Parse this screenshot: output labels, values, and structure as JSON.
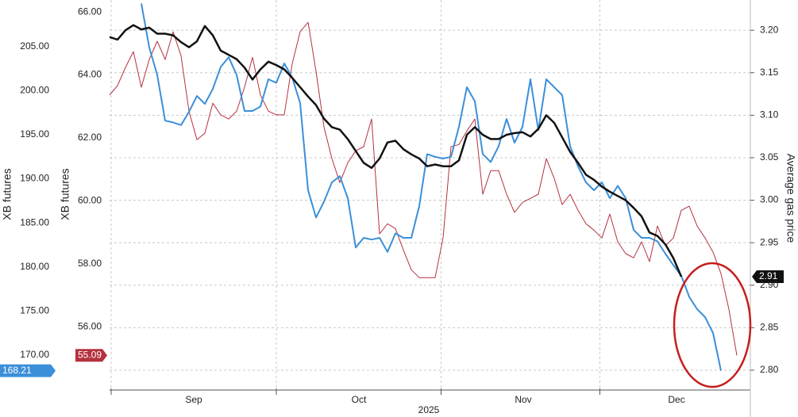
{
  "chart_data": {
    "type": "line",
    "xlabel": "2025",
    "ylabel": "XB futures",
    "y2label": "XB futures",
    "y3label": "Average gas price",
    "grid": true,
    "xlim": [
      0,
      80.7
    ],
    "xticks": [
      {
        "value": 10.6,
        "label": "Sep"
      },
      {
        "value": 31.4,
        "label": "Oct"
      },
      {
        "value": 52.1,
        "label": "Nov"
      },
      {
        "value": 71.4,
        "label": "Dec"
      }
    ],
    "ylim": [
      166.2,
      210.3
    ],
    "yticks": [
      {
        "value": 170,
        "label": "170.00"
      },
      {
        "value": 175,
        "label": "175.00"
      },
      {
        "value": 180,
        "label": "180.00"
      },
      {
        "value": 185,
        "label": "185.00"
      },
      {
        "value": 190,
        "label": "190.00"
      },
      {
        "value": 195,
        "label": "195.00"
      },
      {
        "value": 200,
        "label": "200.00"
      },
      {
        "value": 205,
        "label": "205.00"
      }
    ],
    "y2lim": [
      54.04,
      66.38
    ],
    "y2ticks": [
      {
        "value": 56,
        "label": "56.00"
      },
      {
        "value": 58,
        "label": "58.00"
      },
      {
        "value": 60,
        "label": "60.00"
      },
      {
        "value": 62,
        "label": "62.00"
      },
      {
        "value": 64,
        "label": "64.00"
      },
      {
        "value": 66,
        "label": "66.00"
      }
    ],
    "y3lim": [
      2.7785,
      3.2356
    ],
    "y3ticks": [
      {
        "value": 2.8,
        "label": "2.80"
      },
      {
        "value": 2.85,
        "label": "2.85"
      },
      {
        "value": 2.9,
        "label": "2.90"
      },
      {
        "value": 2.95,
        "label": "2.95"
      },
      {
        "value": 3.0,
        "label": "3.00"
      },
      {
        "value": 3.05,
        "label": "3.05"
      },
      {
        "value": 3.1,
        "label": "3.10"
      },
      {
        "value": 3.15,
        "label": "3.15"
      },
      {
        "value": 3.2,
        "label": "3.20"
      }
    ],
    "series": [
      {
        "color": "#b5313e",
        "axis": "y2",
        "values": [
          63.36,
          63.66,
          64.24,
          64.74,
          63.61,
          64.49,
          65.07,
          64.49,
          65.37,
          64.61,
          62.85,
          61.94,
          62.15,
          63.1,
          62.73,
          62.6,
          62.85,
          63.61,
          64.56,
          63.36,
          62.85,
          62.73,
          62.73,
          64.36,
          65.37,
          65.67,
          64.11,
          62.35,
          61.34,
          60.58,
          61.21,
          61.59,
          61.72,
          62.6,
          58.95,
          59.27,
          59.12,
          58.44,
          57.81,
          57.56,
          57.56,
          57.56,
          58.82,
          61.72,
          61.79,
          62.22,
          62.6,
          60.21,
          60.96,
          60.96,
          60.21,
          59.63,
          59.95,
          60.08,
          60.21,
          61.34,
          60.71,
          59.88,
          60.21,
          59.7,
          59.27,
          59.07,
          58.82,
          59.58,
          58.7,
          58.32,
          58.19,
          58.7,
          58.07,
          59.2,
          58.57,
          58.82,
          59.7,
          59.83,
          59.2,
          58.82,
          58.37,
          57.69,
          56.55,
          55.09
        ]
      },
      {
        "color": "#3b8fd9",
        "axis": "y",
        "values": [
          null,
          null,
          null,
          null,
          209.9,
          204.9,
          201.8,
          196.6,
          196.4,
          196.1,
          197.6,
          199.4,
          198.5,
          200.2,
          202.7,
          203.8,
          201.8,
          197.7,
          197.7,
          198.2,
          201.3,
          200.9,
          203.1,
          201.5,
          198.6,
          188.7,
          185.6,
          187.4,
          189.6,
          190.3,
          187.8,
          182.2,
          183.3,
          183.1,
          183.3,
          181.7,
          183.8,
          183.3,
          183.3,
          186.9,
          192.8,
          192.5,
          192.3,
          192.5,
          195.9,
          200.4,
          198.8,
          192.8,
          191.9,
          193.7,
          196.8,
          194.1,
          195.9,
          201.3,
          195.5,
          201.3,
          200.4,
          199.5,
          193.7,
          191.4,
          189.6,
          188.7,
          189.6,
          187.8,
          189.2,
          187.8,
          184.2,
          183.3,
          183.3,
          182.9,
          181.5,
          180.2,
          179.0,
          176.6,
          175.2,
          174.3,
          172.5,
          168.21,
          null,
          null
        ]
      },
      {
        "color": "#111111",
        "axis": "y3",
        "values": [
          3.192,
          3.189,
          3.2,
          3.206,
          3.201,
          3.203,
          3.196,
          3.196,
          3.194,
          3.186,
          3.18,
          3.187,
          3.205,
          3.194,
          3.176,
          3.171,
          3.166,
          3.156,
          3.142,
          3.154,
          3.163,
          3.159,
          3.154,
          3.144,
          3.133,
          3.122,
          3.112,
          3.096,
          3.086,
          3.083,
          3.072,
          3.058,
          3.044,
          3.038,
          3.049,
          3.068,
          3.07,
          3.06,
          3.054,
          3.049,
          3.04,
          3.042,
          3.04,
          3.04,
          3.047,
          3.077,
          3.086,
          3.077,
          3.072,
          3.072,
          3.077,
          3.079,
          3.08,
          3.075,
          3.084,
          3.1,
          3.091,
          3.074,
          3.057,
          3.044,
          3.03,
          3.024,
          3.016,
          3.01,
          3.005,
          3.0,
          2.991,
          2.981,
          2.962,
          2.958,
          2.948,
          2.932,
          2.91,
          null,
          null,
          null,
          null,
          null,
          null,
          null
        ]
      }
    ]
  }
}
